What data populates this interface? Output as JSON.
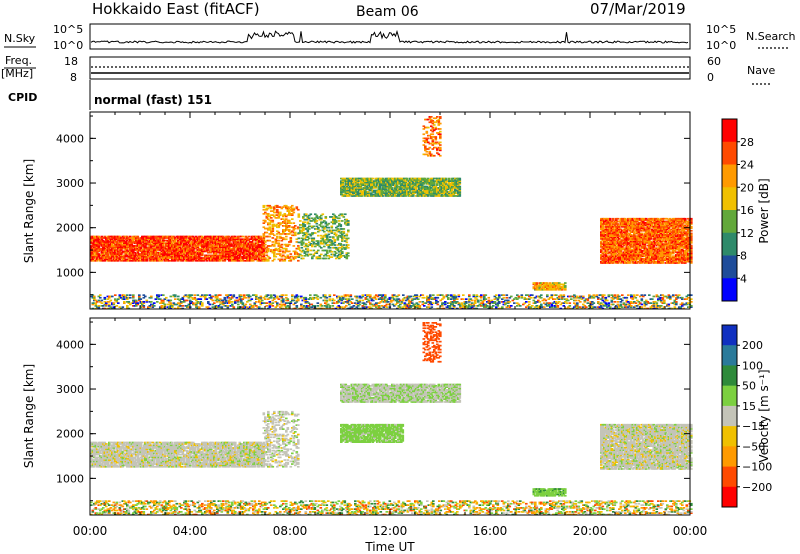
{
  "header": {
    "station": "Hokkaido East (fitACF)",
    "beam": "Beam 06",
    "date": "07/Mar/2019"
  },
  "nsky_panel": {
    "left_label": "N.Sky",
    "right_label": "N.Search",
    "left_ticks": [
      "10^5",
      "10^0"
    ],
    "right_ticks": [
      "10^5",
      "10^0"
    ]
  },
  "freq_panel": {
    "left_label_line1": "Freq.",
    "left_label_line2": "[MHz]",
    "right_label": "Nave",
    "left_ticks": [
      "18",
      "8"
    ],
    "right_ticks": [
      "60",
      "0"
    ]
  },
  "cpid_panel": {
    "label": "CPID",
    "value": "normal (fast) 151"
  },
  "power_colorbar": {
    "title": "Power [dB]",
    "ticks": [
      "28",
      "24",
      "20",
      "16",
      "12",
      "8",
      "4"
    ],
    "colors": [
      "#ff0000",
      "#ff4a00",
      "#ff9a00",
      "#f0c000",
      "#62a83a",
      "#2e8a6a",
      "#1e4c9a",
      "#0000ff"
    ]
  },
  "velocity_colorbar": {
    "title": "Velocity [m s⁻¹]",
    "ticks": [
      "200",
      "100",
      "50",
      "15",
      "−15",
      "−50",
      "−100",
      "−200"
    ],
    "colors": [
      "#1030c0",
      "#2a7a9a",
      "#2e8a3a",
      "#7cd040",
      "#c4c4b8",
      "#f0c000",
      "#ff9a00",
      "#ff4a00",
      "#ff0000"
    ]
  },
  "x_axis": {
    "label": "Time UT",
    "ticks": [
      "00:00",
      "04:00",
      "08:00",
      "12:00",
      "16:00",
      "20:00",
      "00:00"
    ]
  },
  "chart_data": [
    {
      "type": "heatmap",
      "name_shown": "Power [dB]",
      "xlabel": "Time UT",
      "ylabel": "Slant Range [km]",
      "xlim_hours": [
        0,
        24
      ],
      "ylim": [
        180,
        4590
      ],
      "yticks": [
        "1000",
        "2000",
        "3000",
        "4000"
      ],
      "colorbar_range": [
        0,
        32
      ],
      "features": [
        {
          "t_start": 0.0,
          "t_end": 6.9,
          "range_low": 1250,
          "range_high": 1800,
          "value": 27
        },
        {
          "t_start": 6.9,
          "t_end": 8.3,
          "range_low": 1250,
          "range_high": 2500,
          "value": 22
        },
        {
          "t_start": 8.3,
          "t_end": 10.3,
          "range_low": 1300,
          "range_high": 2300,
          "value": 14
        },
        {
          "t_start": 10.0,
          "t_end": 14.8,
          "range_low": 2700,
          "range_high": 3100,
          "value": 14
        },
        {
          "t_start": 13.3,
          "t_end": 14.0,
          "range_low": 3600,
          "range_high": 4500,
          "value": 24
        },
        {
          "t_start": 17.7,
          "t_end": 19.0,
          "range_low": 600,
          "range_high": 760,
          "value": 20
        },
        {
          "t_start": 20.4,
          "t_end": 24.0,
          "range_low": 1200,
          "range_high": 2200,
          "value": 25
        },
        {
          "t_start": 0.0,
          "t_end": 24.0,
          "range_low": 180,
          "range_high": 500,
          "value": 12
        }
      ]
    },
    {
      "type": "heatmap",
      "name_shown": "Velocity [m s⁻¹]",
      "xlabel": "Time UT",
      "ylabel": "Slant Range [km]",
      "xlim_hours": [
        0,
        24
      ],
      "ylim": [
        180,
        4590
      ],
      "yticks": [
        "1000",
        "2000",
        "3000",
        "4000"
      ],
      "colorbar_range": [
        -200,
        200
      ],
      "features": [
        {
          "t_start": 0.0,
          "t_end": 6.9,
          "range_low": 1250,
          "range_high": 1800,
          "value": 0
        },
        {
          "t_start": 6.9,
          "t_end": 8.3,
          "range_low": 1250,
          "range_high": 2500,
          "value": 0
        },
        {
          "t_start": 10.0,
          "t_end": 14.8,
          "range_low": 2700,
          "range_high": 3100,
          "value": 10
        },
        {
          "t_start": 10.0,
          "t_end": 12.5,
          "range_low": 1800,
          "range_high": 2200,
          "value": 30
        },
        {
          "t_start": 13.3,
          "t_end": 14.0,
          "range_low": 3600,
          "range_high": 4500,
          "value": -180
        },
        {
          "t_start": 17.7,
          "t_end": 19.0,
          "range_low": 600,
          "range_high": 760,
          "value": 40
        },
        {
          "t_start": 20.4,
          "t_end": 24.0,
          "range_low": 1200,
          "range_high": 2200,
          "value": 0
        },
        {
          "t_start": 0.0,
          "t_end": 24.0,
          "range_low": 180,
          "range_high": 500,
          "value": -40
        }
      ]
    }
  ]
}
